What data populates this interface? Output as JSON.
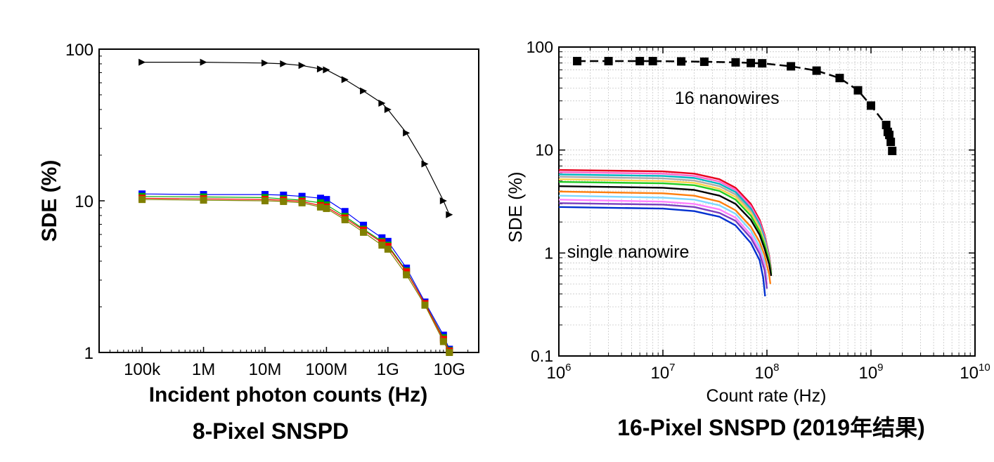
{
  "chart_data": [
    {
      "type": "line",
      "title": "8-Pixel SNSPD",
      "xlabel": "Incident photon counts (Hz)",
      "ylabel": "SDE (%)",
      "x_scale": "log",
      "y_scale": "log",
      "xlim": [
        20000,
        30000000000
      ],
      "ylim": [
        1,
        100
      ],
      "x_tick_values": [
        100000,
        1000000,
        10000000,
        100000000,
        1000000000,
        10000000000
      ],
      "x_tick_labels": [
        "100k",
        "1M",
        "10M",
        "100M",
        "1G",
        "10G"
      ],
      "y_tick_values": [
        1,
        10,
        100
      ],
      "y_tick_labels": [
        "1",
        "10",
        "100"
      ],
      "grid": false,
      "legend": "none",
      "series": [
        {
          "color": "#000000",
          "marker": "triangle-right",
          "x": [
            100000,
            1000000,
            10000000,
            20000000,
            40000000,
            80000000,
            100000000,
            200000000,
            400000000,
            800000000,
            1000000000,
            2000000000,
            4000000000,
            8000000000,
            10000000000
          ],
          "y": [
            82,
            82,
            81,
            80,
            78,
            74,
            73,
            63,
            53,
            44,
            40,
            28,
            17.5,
            10,
            8.1
          ]
        },
        {
          "color": "#0000ff",
          "marker": "square",
          "x": [
            100000,
            1000000,
            10000000,
            20000000,
            40000000,
            80000000,
            100000000,
            200000000,
            400000000,
            800000000,
            1000000000,
            2000000000,
            4000000000,
            8000000000,
            10000000000
          ],
          "y": [
            11.1,
            11.0,
            11.0,
            10.9,
            10.7,
            10.4,
            10.2,
            8.5,
            6.9,
            5.7,
            5.4,
            3.6,
            2.15,
            1.3,
            1.05
          ]
        },
        {
          "color": "#00aa00",
          "marker": "square",
          "x": [
            100000,
            1000000,
            10000000,
            20000000,
            40000000,
            80000000,
            100000000,
            200000000,
            400000000,
            800000000,
            1000000000,
            2000000000,
            4000000000,
            8000000000,
            10000000000
          ],
          "y": [
            10.7,
            10.6,
            10.5,
            10.3,
            10.1,
            9.7,
            9.4,
            7.9,
            6.5,
            5.4,
            5.1,
            3.45,
            2.1,
            1.25,
            1.03
          ]
        },
        {
          "color": "#ff0000",
          "marker": "square",
          "x": [
            100000,
            1000000,
            10000000,
            20000000,
            40000000,
            80000000,
            100000000,
            200000000,
            400000000,
            800000000,
            1000000000,
            2000000000,
            4000000000,
            8000000000,
            10000000000
          ],
          "y": [
            10.4,
            10.3,
            10.2,
            10.1,
            9.9,
            9.3,
            9.1,
            7.7,
            6.4,
            5.3,
            5.0,
            3.4,
            2.1,
            1.22,
            1.02
          ]
        },
        {
          "color": "#808000",
          "marker": "square",
          "x": [
            100000,
            1000000,
            10000000,
            20000000,
            40000000,
            80000000,
            100000000,
            200000000,
            400000000,
            800000000,
            1000000000,
            2000000000,
            4000000000,
            8000000000,
            10000000000
          ],
          "y": [
            10.2,
            10.1,
            10.0,
            9.9,
            9.7,
            9.1,
            8.9,
            7.5,
            6.2,
            5.1,
            4.8,
            3.25,
            2.05,
            1.18,
            1.0
          ]
        }
      ]
    },
    {
      "type": "line",
      "title": "16-Pixel SNSPD (2019年结果)",
      "xlabel": "Count rate (Hz)",
      "ylabel": "SDE (%)",
      "x_scale": "log",
      "y_scale": "log",
      "xlim": [
        1000000,
        10000000000
      ],
      "ylim": [
        0.1,
        100
      ],
      "x_tick_values": [
        1000000,
        10000000,
        100000000,
        1000000000,
        10000000000
      ],
      "x_tick_labels": [
        {
          "base": "10",
          "exp": "6"
        },
        {
          "base": "10",
          "exp": "7"
        },
        {
          "base": "10",
          "exp": "8"
        },
        {
          "base": "10",
          "exp": "9"
        },
        {
          "base": "10",
          "exp": "10"
        }
      ],
      "y_tick_values": [
        0.1,
        1,
        10,
        100
      ],
      "y_tick_labels": [
        "0.1",
        "1",
        "10",
        "100"
      ],
      "grid": true,
      "legend": "none",
      "annotations": [
        {
          "text": "16 nanowires",
          "x": 13000000,
          "y": 28
        },
        {
          "text": "single nanowire",
          "x": 1200000,
          "y": 0.9
        }
      ],
      "series": [
        {
          "color": "#000000",
          "marker": "square",
          "linestyle": "dashed",
          "x": [
            1500000,
            3000000,
            6000000,
            8000000,
            15000000,
            25000000,
            50000000,
            70000000,
            90000000,
            170000000,
            300000000,
            500000000,
            750000000,
            1000000000,
            1400000000,
            1450000000,
            1500000000,
            1550000000,
            1600000000
          ],
          "y": [
            73,
            73,
            73,
            73,
            72.5,
            72,
            71,
            70,
            69.5,
            65,
            59,
            50,
            38,
            27,
            17.5,
            15,
            14,
            12,
            9.8
          ]
        },
        {
          "color": "#e8001c",
          "x": [
            1000000,
            10000000,
            20000000,
            35000000,
            50000000,
            70000000,
            85000000,
            95000000,
            105000000,
            110000000
          ],
          "y": [
            6.4,
            6.2,
            5.9,
            5.2,
            4.3,
            3.0,
            2.1,
            1.5,
            0.95,
            0.68
          ]
        },
        {
          "color": "#ff66cc",
          "x": [
            1000000,
            10000000,
            20000000,
            35000000,
            50000000,
            70000000,
            85000000,
            95000000,
            105000000,
            110000000
          ],
          "y": [
            6.1,
            5.9,
            5.6,
            4.95,
            4.1,
            2.85,
            2.0,
            1.45,
            0.92,
            0.66
          ]
        },
        {
          "color": "#00b7c3",
          "x": [
            1000000,
            10000000,
            20000000,
            35000000,
            50000000,
            70000000,
            85000000,
            95000000,
            105000000,
            110000000
          ],
          "y": [
            5.8,
            5.6,
            5.35,
            4.7,
            3.9,
            2.7,
            1.9,
            1.38,
            0.9,
            0.65
          ]
        },
        {
          "color": "#aaaaaa",
          "x": [
            1000000,
            10000000,
            20000000,
            35000000,
            50000000,
            70000000,
            85000000,
            95000000,
            105000000,
            110000000
          ],
          "y": [
            5.5,
            5.3,
            5.05,
            4.45,
            3.7,
            2.55,
            1.8,
            1.3,
            0.88,
            0.64
          ]
        },
        {
          "color": "#ffd24d",
          "x": [
            1000000,
            10000000,
            20000000,
            35000000,
            50000000,
            70000000,
            85000000,
            95000000,
            105000000,
            110000000
          ],
          "y": [
            5.2,
            5.0,
            4.8,
            4.2,
            3.5,
            2.45,
            1.72,
            1.25,
            0.86,
            0.63
          ]
        },
        {
          "color": "#22cc22",
          "x": [
            1000000,
            10000000,
            20000000,
            35000000,
            50000000,
            70000000,
            85000000,
            95000000,
            105000000,
            110000000
          ],
          "y": [
            4.9,
            4.75,
            4.55,
            4.0,
            3.3,
            2.3,
            1.62,
            1.2,
            0.84,
            0.62
          ]
        },
        {
          "color": "#000000",
          "x": [
            1000000,
            10000000,
            20000000,
            35000000,
            50000000,
            70000000,
            85000000,
            95000000,
            105000000,
            110000000
          ],
          "y": [
            4.45,
            4.3,
            4.1,
            3.6,
            3.0,
            2.1,
            1.5,
            1.1,
            0.78,
            0.6
          ]
        },
        {
          "color": "#ff7f0e",
          "x": [
            1000000,
            10000000,
            20000000,
            35000000,
            50000000,
            70000000,
            85000000,
            95000000,
            105000000,
            108000000
          ],
          "y": [
            3.95,
            3.8,
            3.6,
            3.15,
            2.6,
            1.8,
            1.28,
            0.95,
            0.62,
            0.5
          ]
        },
        {
          "color": "#7fd8ff",
          "x": [
            1000000,
            10000000,
            20000000,
            35000000,
            50000000,
            70000000,
            85000000,
            95000000,
            100000000
          ],
          "y": [
            3.6,
            3.45,
            3.3,
            2.9,
            2.4,
            1.65,
            1.15,
            0.82,
            0.55
          ]
        },
        {
          "color": "#ff80ff",
          "x": [
            1000000,
            10000000,
            20000000,
            35000000,
            50000000,
            70000000,
            85000000,
            95000000,
            100000000
          ],
          "y": [
            3.3,
            3.15,
            3.0,
            2.65,
            2.2,
            1.5,
            1.05,
            0.75,
            0.5
          ]
        },
        {
          "color": "#7b3fbf",
          "x": [
            1000000,
            10000000,
            20000000,
            35000000,
            50000000,
            70000000,
            85000000,
            95000000,
            100000000
          ],
          "y": [
            3.05,
            2.95,
            2.8,
            2.45,
            2.05,
            1.4,
            0.98,
            0.68,
            0.45
          ]
        },
        {
          "color": "#0030d0",
          "x": [
            1000000,
            10000000,
            20000000,
            35000000,
            50000000,
            70000000,
            85000000,
            92000000,
            96000000
          ],
          "y": [
            2.8,
            2.7,
            2.55,
            2.25,
            1.85,
            1.25,
            0.85,
            0.58,
            0.38
          ]
        }
      ]
    }
  ]
}
